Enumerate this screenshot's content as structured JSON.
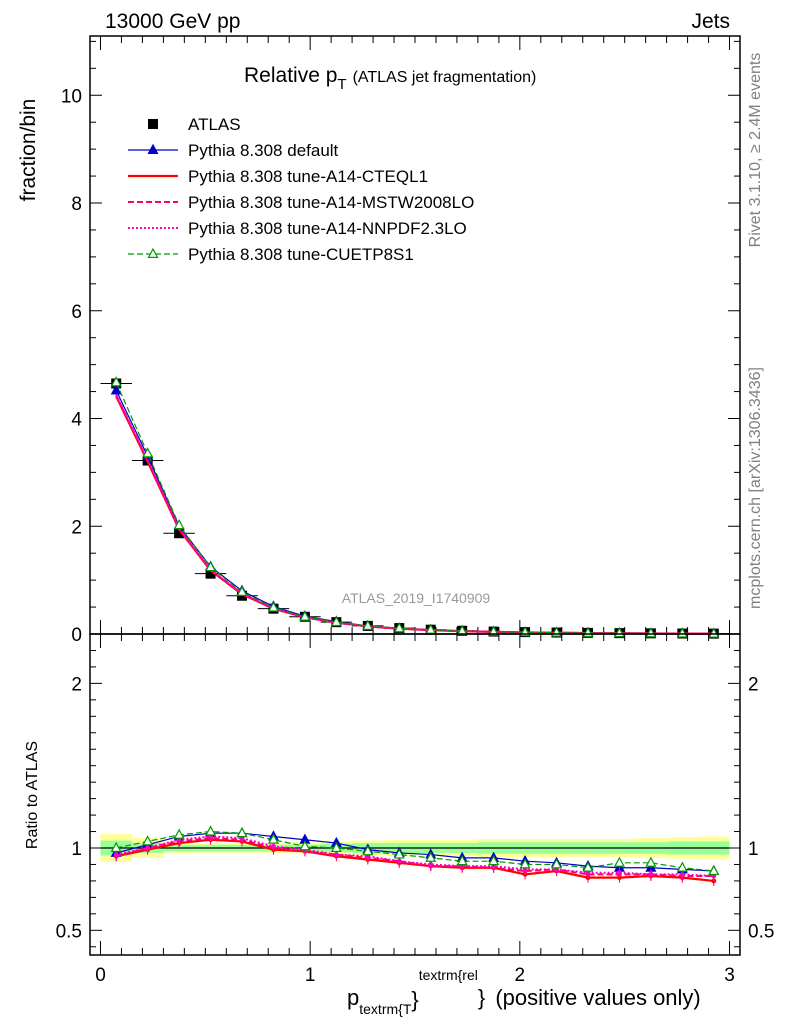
{
  "header": {
    "left": "13000 GeV pp",
    "right": "Jets"
  },
  "side_labels": {
    "rivet": "Rivet 3.1.10, ≥ 2.4M events",
    "mcplots": "mcplots.cern.ch [arXiv:1306.3436]"
  },
  "watermark": "ATLAS_2019_I1740909",
  "chart_data": [
    {
      "type": "scatter",
      "panel": "main",
      "title_main": "Relative p",
      "title_sub": "T",
      "title_note": "(ATLAS jet fragmentation)",
      "ylabel": "fraction/bin",
      "xlim": [
        -0.05,
        3.05
      ],
      "ylim": [
        0,
        11.1
      ],
      "yticks": [
        0,
        2,
        4,
        6,
        8,
        10
      ],
      "xticks": [
        0,
        1,
        2,
        3
      ],
      "x": [
        0.075,
        0.225,
        0.375,
        0.525,
        0.675,
        0.825,
        0.975,
        1.125,
        1.275,
        1.425,
        1.575,
        1.725,
        1.875,
        2.025,
        2.175,
        2.325,
        2.475,
        2.625,
        2.775,
        2.925
      ],
      "legend_position": "top-left",
      "series": [
        {
          "name": "ATLAS",
          "color": "#000000",
          "style": "data",
          "marker": "square",
          "values": [
            4.65,
            3.22,
            1.87,
            1.12,
            0.71,
            0.47,
            0.32,
            0.22,
            0.15,
            0.11,
            0.08,
            0.06,
            0.045,
            0.035,
            0.027,
            0.021,
            0.016,
            0.012,
            0.009,
            0.007
          ]
        },
        {
          "name": "Pythia 8.308 default",
          "color": "#0000cc",
          "style": "solid",
          "width": 1.2,
          "marker": "triangle-filled",
          "values": [
            4.52,
            3.3,
            2.0,
            1.25,
            0.8,
            0.51,
            0.33,
            0.23,
            0.15,
            0.105,
            0.077,
            0.056,
            0.042,
            0.032,
            0.025,
            0.019,
            0.014,
            0.01,
            0.008,
            0.006
          ]
        },
        {
          "name": "Pythia 8.308 tune-A14-CTEQL1",
          "color": "#ff0000",
          "style": "solid",
          "width": 2.2,
          "marker": "none",
          "values": [
            4.41,
            3.2,
            1.94,
            1.18,
            0.74,
            0.47,
            0.31,
            0.21,
            0.14,
            0.1,
            0.072,
            0.052,
            0.039,
            0.029,
            0.023,
            0.017,
            0.013,
            0.01,
            0.007,
            0.006
          ]
        },
        {
          "name": "Pythia 8.308 tune-A14-MSTW2008LO",
          "color": "#ff0066",
          "style": "dashed",
          "width": 2.0,
          "marker": "none",
          "values": [
            4.43,
            3.22,
            1.95,
            1.19,
            0.75,
            0.47,
            0.31,
            0.21,
            0.14,
            0.1,
            0.073,
            0.053,
            0.039,
            0.03,
            0.023,
            0.018,
            0.014,
            0.01,
            0.008,
            0.006
          ]
        },
        {
          "name": "Pythia 8.308 tune-A14-NNPDF2.3LO",
          "color": "#ff00cc",
          "style": "dotted",
          "width": 2.0,
          "marker": "none",
          "values": [
            4.44,
            3.23,
            1.96,
            1.19,
            0.75,
            0.48,
            0.31,
            0.21,
            0.14,
            0.1,
            0.073,
            0.053,
            0.04,
            0.03,
            0.023,
            0.018,
            0.014,
            0.01,
            0.008,
            0.006
          ]
        },
        {
          "name": "Pythia 8.308 tune-CUETP8S1",
          "color": "#009900",
          "style": "dashed",
          "width": 1.2,
          "marker": "triangle-open",
          "values": [
            4.67,
            3.35,
            2.02,
            1.24,
            0.78,
            0.49,
            0.32,
            0.22,
            0.15,
            0.105,
            0.076,
            0.055,
            0.041,
            0.031,
            0.024,
            0.019,
            0.015,
            0.011,
            0.008,
            0.006
          ]
        }
      ]
    },
    {
      "type": "scatter",
      "panel": "ratio",
      "ylabel": "Ratio to ATLAS",
      "xlabel_main": "p",
      "xlabel_sub": "textrm{T",
      "xlabel_sup": "textrm{rel",
      "xlabel_brace_sub": "}",
      "xlabel_brace_sup": "}",
      "xlabel_suffix": " (positive values only)",
      "xlim": [
        -0.05,
        3.05
      ],
      "ylim": [
        0.35,
        2.3
      ],
      "yticks": [
        0.5,
        1,
        2
      ],
      "yticklabels": [
        "0.5",
        "1",
        "2"
      ],
      "xticks": [
        0,
        1,
        2,
        3
      ],
      "xticklabels": [
        "0",
        "1",
        "2",
        "3"
      ],
      "x": [
        0.075,
        0.225,
        0.375,
        0.525,
        0.675,
        0.825,
        0.975,
        1.125,
        1.275,
        1.425,
        1.575,
        1.725,
        1.875,
        2.025,
        2.175,
        2.325,
        2.475,
        2.625,
        2.775,
        2.925
      ],
      "band_inner": [
        0.045,
        0.03,
        0.02,
        0.02,
        0.02,
        0.02,
        0.02,
        0.025,
        0.03,
        0.03,
        0.03,
        0.03,
        0.035,
        0.035,
        0.035,
        0.035,
        0.035,
        0.035,
        0.04,
        0.04
      ],
      "band_outer": [
        0.085,
        0.06,
        0.035,
        0.03,
        0.03,
        0.03,
        0.035,
        0.04,
        0.045,
        0.05,
        0.05,
        0.05,
        0.055,
        0.055,
        0.055,
        0.055,
        0.055,
        0.06,
        0.065,
        0.07
      ],
      "band_colors": {
        "inner": "#99ff99",
        "outer": "#ffff99"
      },
      "series": [
        {
          "name": "Pythia 8.308 default",
          "color": "#0000cc",
          "style": "solid",
          "width": 1.2,
          "marker": "triangle-filled",
          "values": [
            0.97,
            1.02,
            1.07,
            1.09,
            1.09,
            1.07,
            1.05,
            1.03,
            0.99,
            0.97,
            0.96,
            0.94,
            0.94,
            0.92,
            0.91,
            0.89,
            0.88,
            0.88,
            0.87,
            0.86
          ]
        },
        {
          "name": "Pythia 8.308 tune-A14-CTEQL1",
          "color": "#ff0000",
          "style": "solid",
          "width": 2.2,
          "marker": "dot",
          "values": [
            0.95,
            0.99,
            1.03,
            1.05,
            1.04,
            0.99,
            0.98,
            0.95,
            0.93,
            0.91,
            0.89,
            0.88,
            0.88,
            0.84,
            0.86,
            0.82,
            0.82,
            0.83,
            0.82,
            0.8
          ]
        },
        {
          "name": "Pythia 8.308 tune-A14-MSTW2008LO",
          "color": "#ff0066",
          "style": "dashed",
          "width": 2.0,
          "marker": "dot",
          "values": [
            0.95,
            1.0,
            1.04,
            1.06,
            1.05,
            1.0,
            0.98,
            0.96,
            0.94,
            0.92,
            0.89,
            0.89,
            0.88,
            0.86,
            0.87,
            0.84,
            0.84,
            0.84,
            0.83,
            0.83
          ]
        },
        {
          "name": "Pythia 8.308 tune-A14-NNPDF2.3LO",
          "color": "#ff00cc",
          "style": "dotted",
          "width": 2.0,
          "marker": "dot",
          "values": [
            0.96,
            1.0,
            1.05,
            1.07,
            1.06,
            1.01,
            0.99,
            0.96,
            0.95,
            0.92,
            0.9,
            0.89,
            0.89,
            0.87,
            0.87,
            0.85,
            0.85,
            0.84,
            0.84,
            0.83
          ]
        },
        {
          "name": "Pythia 8.308 tune-CUETP8S1",
          "color": "#009900",
          "style": "dashed",
          "width": 1.2,
          "marker": "triangle-open",
          "values": [
            1.0,
            1.04,
            1.08,
            1.1,
            1.09,
            1.05,
            1.01,
            1.0,
            0.98,
            0.96,
            0.94,
            0.92,
            0.92,
            0.9,
            0.9,
            0.88,
            0.91,
            0.91,
            0.88,
            0.86
          ]
        }
      ]
    }
  ]
}
